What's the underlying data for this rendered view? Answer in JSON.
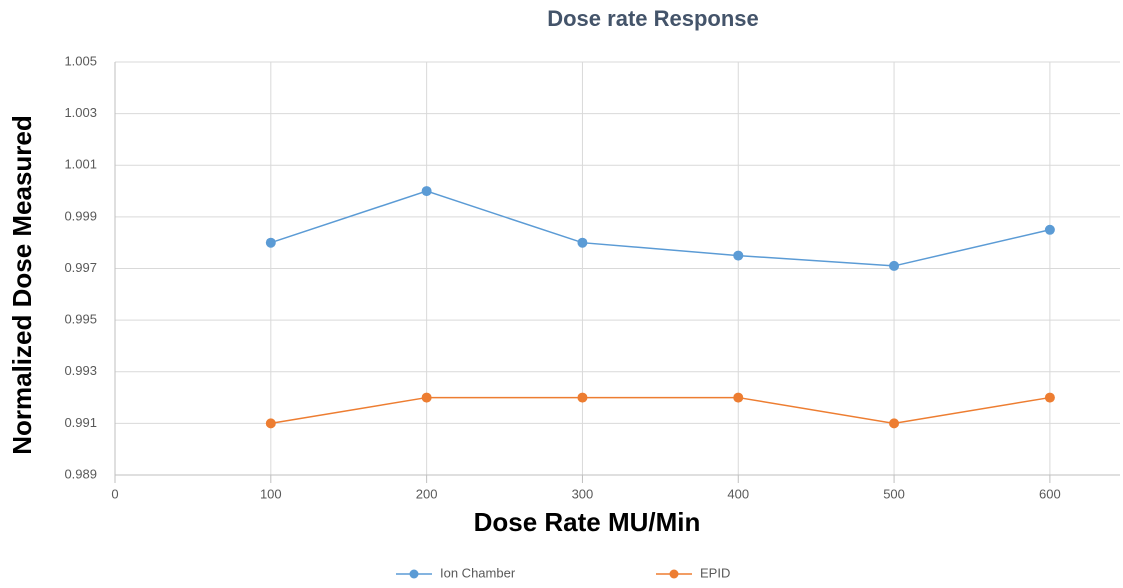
{
  "chart_data": {
    "type": "line",
    "title": "Dose rate Response",
    "x_label": "Dose Rate MU/Min",
    "y_label": "Normalized Dose Measured",
    "x": [
      100,
      200,
      300,
      400,
      500,
      600
    ],
    "series": [
      {
        "name": "Ion Chamber",
        "color": "#5b9bd5",
        "values": [
          0.998,
          1.0,
          0.998,
          0.9975,
          0.9971,
          0.9985
        ]
      },
      {
        "name": "EPID",
        "color": "#ed7d31",
        "values": [
          0.991,
          0.992,
          0.992,
          0.992,
          0.991,
          0.992
        ]
      }
    ],
    "xlim": [
      0,
      645
    ],
    "xticks": [
      0,
      100,
      200,
      300,
      400,
      500,
      600
    ],
    "ylim": [
      0.989,
      1.005
    ],
    "yticks": [
      0.989,
      0.991,
      0.993,
      0.995,
      0.997,
      0.999,
      1.001,
      1.003,
      1.005
    ],
    "grid": true,
    "legend": "bottom"
  }
}
